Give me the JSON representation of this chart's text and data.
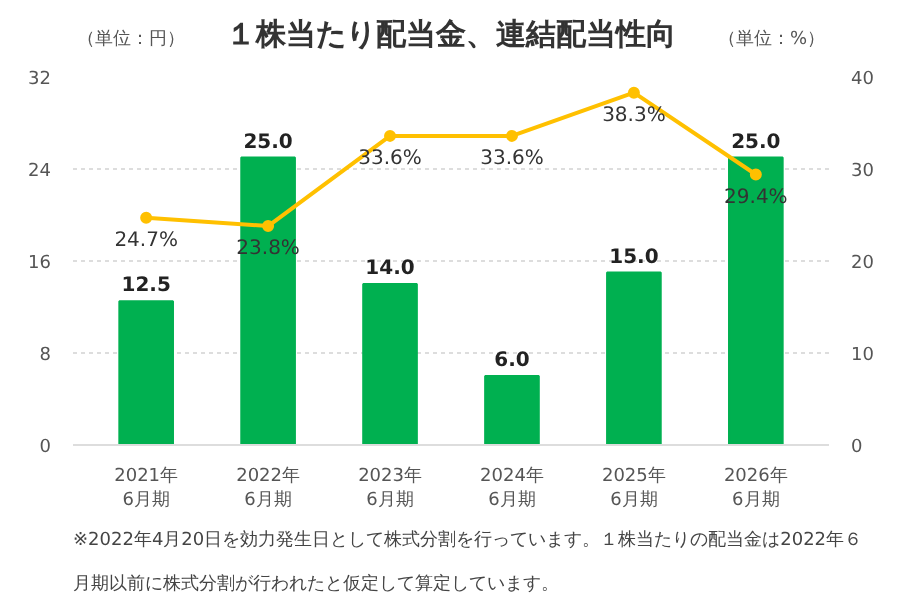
{
  "chart_data": {
    "type": "bar",
    "title": "１株当たり配当金、連結配当性向",
    "ylabel": "（単位：円）",
    "y2label": "（単位：%）",
    "categories": [
      "2021年\n6月期",
      "2022年\n6月期",
      "2023年\n6月期",
      "2024年\n6月期",
      "2025年\n6月期",
      "2026年\n6月期"
    ],
    "series": [
      {
        "color": "#00b050",
        "values": [
          12.5,
          25.0,
          14.0,
          6.0,
          15.0,
          25.0
        ],
        "value_labels": [
          "12.5",
          "25.0",
          "14.0",
          "6.0",
          "15.0",
          "25.0"
        ]
      },
      {
        "type": "line",
        "axis": "y2",
        "color": "#ffc000",
        "marker": "circle",
        "values": [
          24.7,
          23.8,
          33.6,
          33.6,
          38.3,
          29.4
        ],
        "value_labels": [
          "24.7%",
          "23.8%",
          "33.6%",
          "33.6%",
          "38.3%",
          "29.4%"
        ]
      }
    ],
    "ylim": [
      0,
      32
    ],
    "yticks": [
      0,
      8,
      16,
      24,
      32
    ],
    "y2lim": [
      0,
      40
    ],
    "y2ticks": [
      0,
      10,
      20,
      30,
      40
    ],
    "grid": "y",
    "annotations": [
      "※2022年4月20日を効力発生日として株式分割を行っています。１株当たりの配当金は2022年６月期以前に株式分割が行われたと仮定して算定しています。"
    ]
  }
}
